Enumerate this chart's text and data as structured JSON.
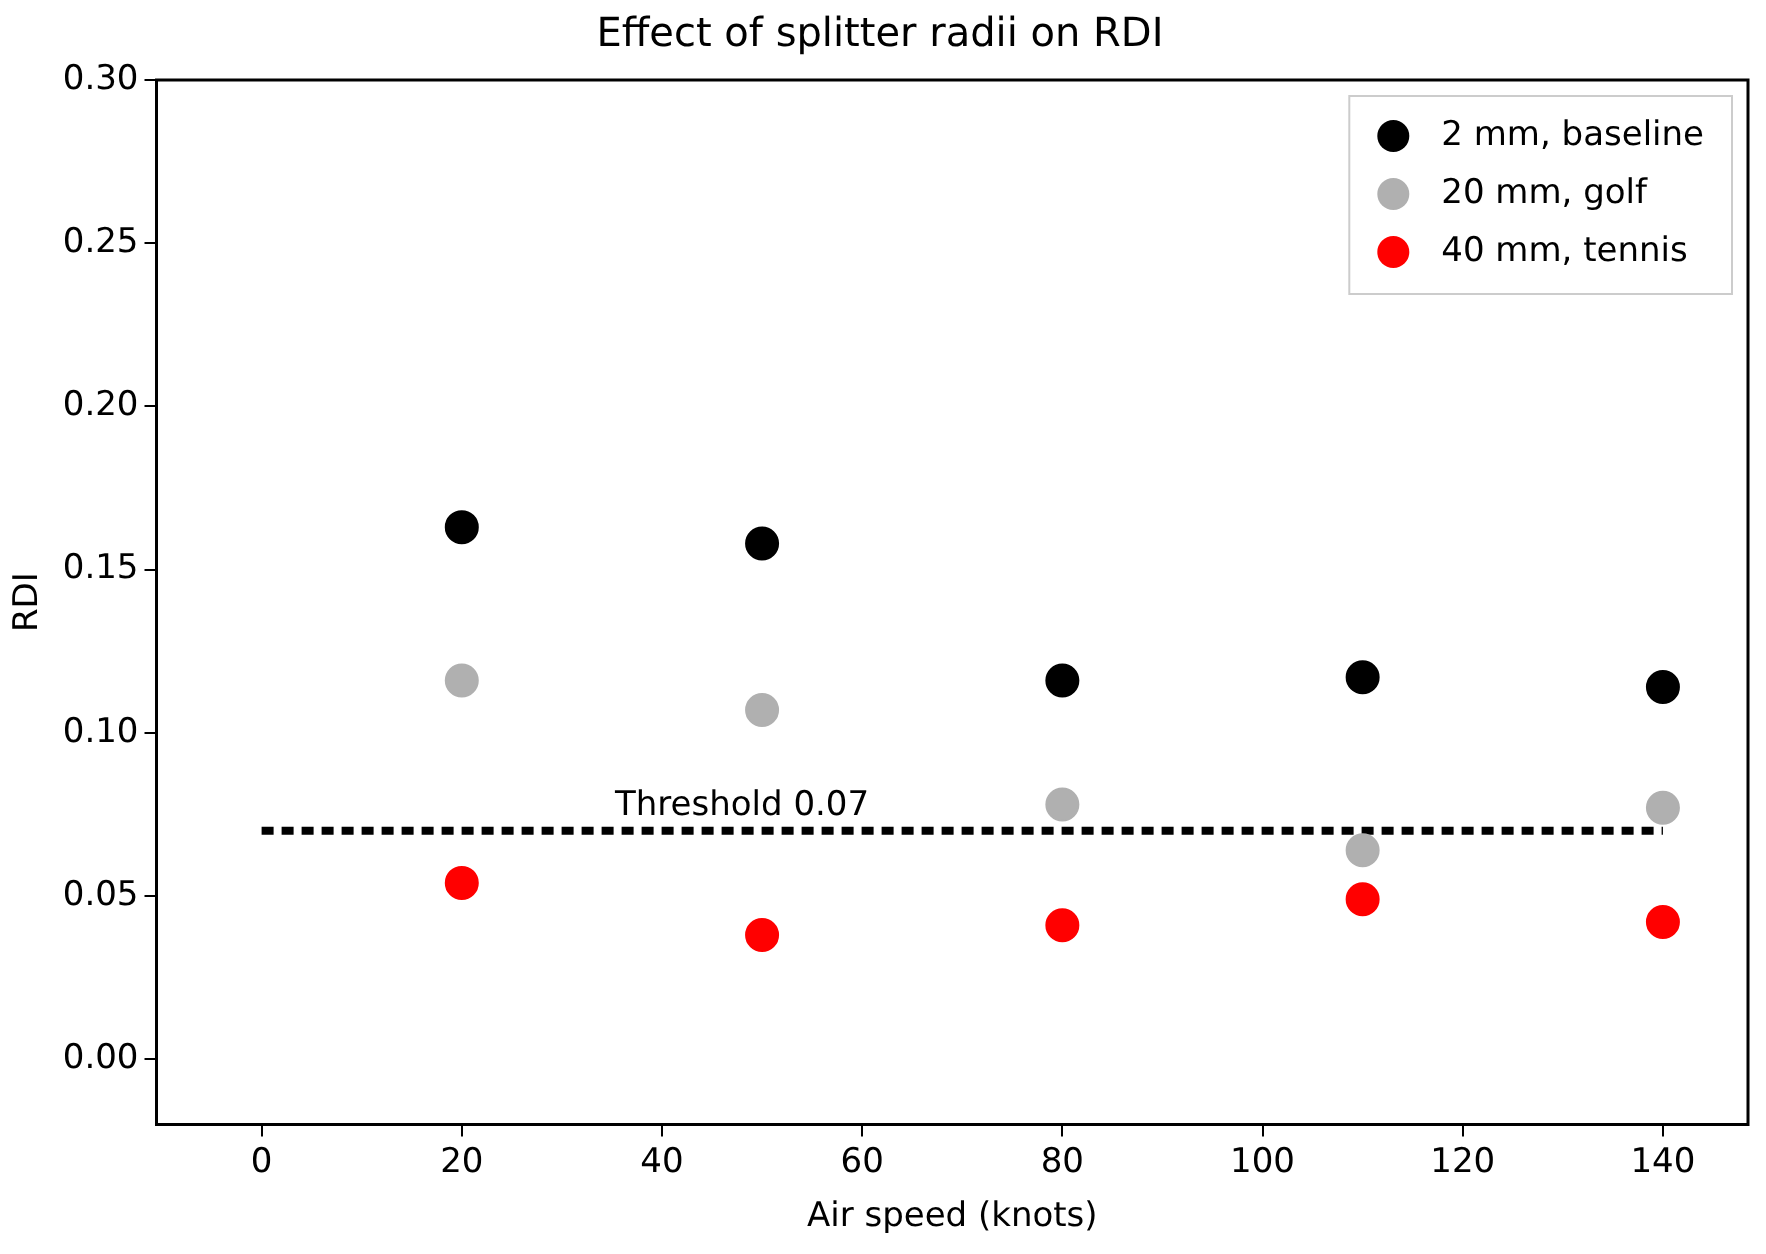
{
  "chart_data": {
    "type": "scatter",
    "title": "Effect of splitter radii on RDI",
    "xlabel": "Air speed (knots)",
    "ylabel": "RDI",
    "x": [
      20,
      50,
      80,
      110,
      140
    ],
    "series": [
      {
        "name": "2 mm, baseline",
        "color": "#000000",
        "values": [
          0.163,
          0.158,
          0.116,
          0.117,
          0.114
        ]
      },
      {
        "name": "20 mm, golf",
        "color": "#b0b0b0",
        "values": [
          0.116,
          0.107,
          0.078,
          0.064,
          0.077
        ]
      },
      {
        "name": "40 mm, tennis",
        "color": "#ff0000",
        "values": [
          0.054,
          0.038,
          0.041,
          0.049,
          0.042
        ]
      },
      {
        "type": "line",
        "color": "#000000",
        "x": [
          0,
          140
        ],
        "values": [
          0.07,
          0.07
        ],
        "line_style": "dashed",
        "marker": "none"
      }
    ],
    "annotations": [
      {
        "text": "Threshold 0.07",
        "x": 48,
        "y": 0.07
      }
    ],
    "xlim": [
      -10.5,
      148.5
    ],
    "ylim": [
      -0.02,
      0.3
    ],
    "xticks": [
      0,
      20,
      40,
      60,
      80,
      100,
      120,
      140
    ],
    "yticks": [
      {
        "value": 0,
        "label": "0.00"
      },
      {
        "value": 0.05,
        "label": "0.05"
      },
      {
        "value": 0.1,
        "label": "0.10"
      },
      {
        "value": 0.15,
        "label": "0.15"
      },
      {
        "value": 0.2,
        "label": "0.20"
      },
      {
        "value": 0.25,
        "label": "0.25"
      },
      {
        "value": 0.3,
        "label": "0.30"
      }
    ],
    "marker": "circle",
    "grid": false,
    "legend": "top right"
  }
}
